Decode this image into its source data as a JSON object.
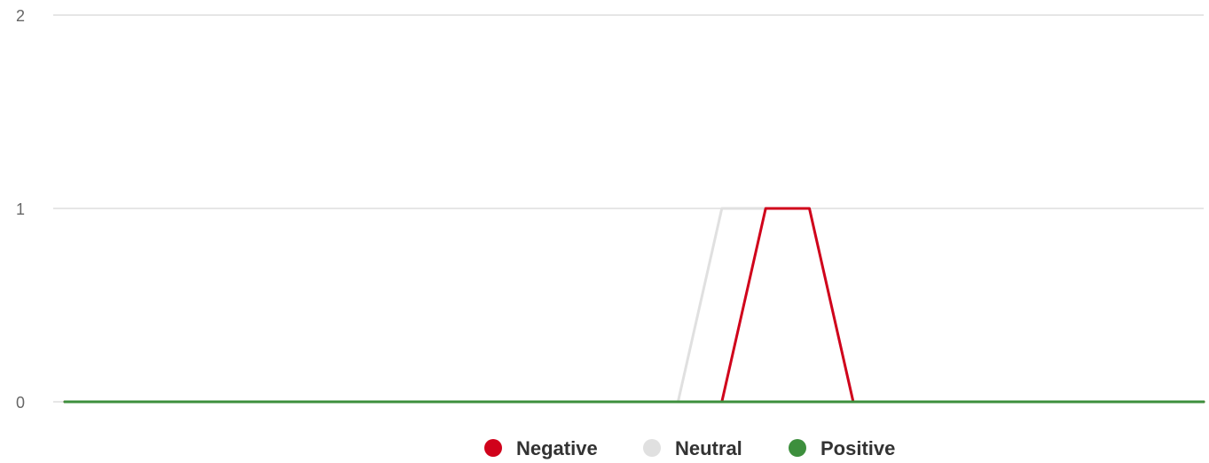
{
  "chart_data": {
    "type": "line",
    "title": "",
    "xlabel": "",
    "ylabel": "",
    "ylim": [
      0,
      2
    ],
    "yticks": [
      0,
      1,
      2
    ],
    "grid": true,
    "legend_position": "bottom-center",
    "x": [
      0,
      1,
      2,
      3,
      4,
      5,
      6,
      7,
      8,
      9,
      10,
      11,
      12,
      13,
      14,
      15,
      16,
      17,
      18,
      19,
      20,
      21,
      22,
      23,
      24,
      25,
      26
    ],
    "series": [
      {
        "name": "Neutral",
        "color": "#e0e0e0",
        "values": [
          0,
          0,
          0,
          0,
          0,
          0,
          0,
          0,
          0,
          0,
          0,
          0,
          0,
          0,
          0,
          1,
          1,
          1,
          0,
          0,
          0,
          0,
          0,
          0,
          0,
          0,
          0
        ]
      },
      {
        "name": "Negative",
        "color": "#d0021b",
        "values": [
          0,
          0,
          0,
          0,
          0,
          0,
          0,
          0,
          0,
          0,
          0,
          0,
          0,
          0,
          0,
          0,
          1,
          1,
          0,
          0,
          0,
          0,
          0,
          0,
          0,
          0,
          0
        ]
      },
      {
        "name": "Positive",
        "color": "#3d8f3d",
        "values": [
          0,
          0,
          0,
          0,
          0,
          0,
          0,
          0,
          0,
          0,
          0,
          0,
          0,
          0,
          0,
          0,
          0,
          0,
          0,
          0,
          0,
          0,
          0,
          0,
          0,
          0,
          0
        ]
      }
    ],
    "legend": [
      {
        "name": "Negative",
        "color": "#d0021b"
      },
      {
        "name": "Neutral",
        "color": "#e0e0e0"
      },
      {
        "name": "Positive",
        "color": "#3d8f3d"
      }
    ]
  }
}
